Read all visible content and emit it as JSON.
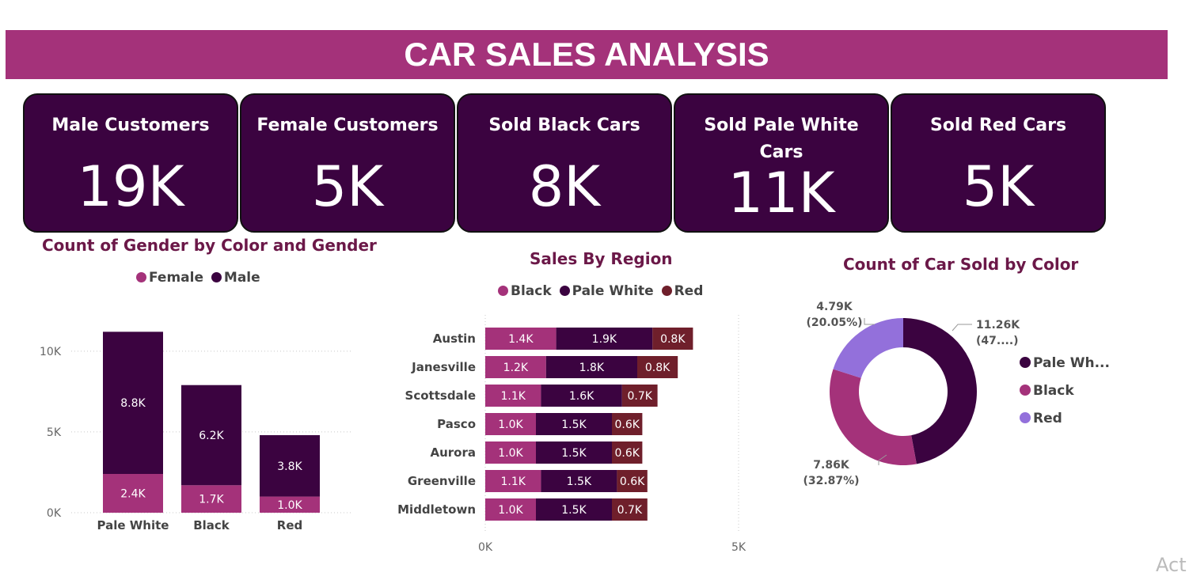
{
  "title": "CAR SALES ANALYSIS",
  "cards": [
    {
      "label": "Male Customers",
      "value": "19K"
    },
    {
      "label": "Female Customers",
      "value": "5K"
    },
    {
      "label": "Sold Black Cars",
      "value": "8K"
    },
    {
      "label": "Sold Pale White Cars",
      "value": "11K"
    },
    {
      "label": "Sold Red Cars",
      "value": "5K"
    }
  ],
  "colors": {
    "banner": "#a4327a",
    "card": "#3b0340",
    "female": "#a4327a",
    "male": "#3b0340",
    "black": "#a4327a",
    "pale_white": "#3b0340",
    "red": "#6f1f2b",
    "donut_red": "#9370db"
  },
  "watermark": "Act",
  "chart_data": [
    {
      "type": "bar",
      "stacked": true,
      "title": "Count of Gender by Color and Gender",
      "legend": [
        "Female",
        "Male"
      ],
      "legend_position": "top-left",
      "categories": [
        "Pale White",
        "Black",
        "Red"
      ],
      "series": [
        {
          "name": "Female",
          "values": [
            2.4,
            1.7,
            1.0
          ],
          "labels": [
            "2.4K",
            "1.7K",
            "1.0K"
          ]
        },
        {
          "name": "Male",
          "values": [
            8.8,
            6.2,
            3.8
          ],
          "labels": [
            "8.8K",
            "6.2K",
            "3.8K"
          ]
        }
      ],
      "yticks": [
        0,
        5,
        10
      ],
      "ytick_labels": [
        "0K",
        "5K",
        "10K"
      ],
      "ylim": [
        0,
        12
      ],
      "grid": true
    },
    {
      "type": "bar",
      "orientation": "horizontal",
      "stacked": true,
      "title": "Sales By Region",
      "legend": [
        "Black",
        "Pale White",
        "Red"
      ],
      "legend_position": "top",
      "categories": [
        "Austin",
        "Janesville",
        "Scottsdale",
        "Pasco",
        "Aurora",
        "Greenville",
        "Middletown"
      ],
      "series": [
        {
          "name": "Black",
          "values": [
            1.4,
            1.2,
            1.1,
            1.0,
            1.0,
            1.1,
            1.0
          ],
          "labels": [
            "1.4K",
            "1.2K",
            "1.1K",
            "1.0K",
            "1.0K",
            "1.1K",
            "1.0K"
          ]
        },
        {
          "name": "Pale White",
          "values": [
            1.9,
            1.8,
            1.6,
            1.5,
            1.5,
            1.5,
            1.5
          ],
          "labels": [
            "1.9K",
            "1.8K",
            "1.6K",
            "1.5K",
            "1.5K",
            "1.5K",
            "1.5K"
          ]
        },
        {
          "name": "Red",
          "values": [
            0.8,
            0.8,
            0.7,
            0.6,
            0.6,
            0.6,
            0.7
          ],
          "labels": [
            "0.8K",
            "0.8K",
            "0.7K",
            "0.6K",
            "0.6K",
            "0.6K",
            "0.7K"
          ]
        }
      ],
      "xticks": [
        0,
        5
      ],
      "xtick_labels": [
        "0K",
        "5K"
      ],
      "xlim": [
        0,
        5
      ],
      "grid": true
    },
    {
      "type": "pie",
      "donut": true,
      "title": "Count of Car Sold by Color",
      "legend": [
        "Pale Wh...",
        "Black",
        "Red"
      ],
      "legend_position": "right",
      "slices": [
        {
          "name": "Pale White",
          "value": 11.26,
          "percent": 47.08,
          "label_value": "11.26K",
          "label_percent": "(47....)"
        },
        {
          "name": "Black",
          "value": 7.86,
          "percent": 32.87,
          "label_value": "7.86K",
          "label_percent": "(32.87%)"
        },
        {
          "name": "Red",
          "value": 4.79,
          "percent": 20.05,
          "label_value": "4.79K",
          "label_percent": "(20.05%)"
        }
      ]
    }
  ]
}
